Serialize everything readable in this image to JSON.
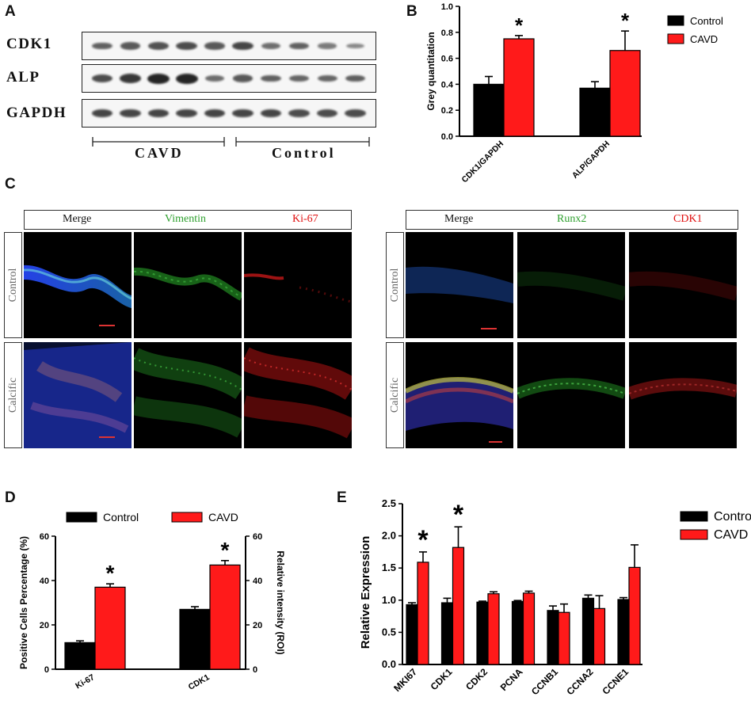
{
  "panel_labels": {
    "a": "A",
    "b": "B",
    "c": "C",
    "d": "D",
    "e": "E"
  },
  "blot": {
    "rows": [
      {
        "label": "CDK1",
        "bands": [
          0.55,
          0.6,
          0.65,
          0.7,
          0.6,
          0.75,
          0.45,
          0.55,
          0.35,
          0.25
        ]
      },
      {
        "label": "ALP",
        "bands": [
          0.7,
          0.85,
          1.0,
          1.0,
          0.45,
          0.6,
          0.55,
          0.5,
          0.5,
          0.55
        ]
      },
      {
        "label": "GAPDH",
        "bands": [
          0.75,
          0.75,
          0.75,
          0.75,
          0.75,
          0.75,
          0.75,
          0.7,
          0.7,
          0.7
        ]
      }
    ],
    "group_left": "CAVD",
    "group_right": "Control"
  },
  "colors": {
    "control": "#000000",
    "cavd": "#ff1a1a",
    "vimentin_text": "#2ea02e",
    "ki67_text": "#e01010",
    "runx2_text": "#2ea02e",
    "cdk1_text": "#e01010"
  },
  "chart_data": [
    {
      "type": "bar",
      "panel": "B",
      "categories": [
        "CDK1/GAPDH",
        "ALP/GAPDH"
      ],
      "series": [
        {
          "name": "Control",
          "values": [
            0.4,
            0.37
          ],
          "errors": [
            0.06,
            0.05
          ]
        },
        {
          "name": "CAVD",
          "values": [
            0.75,
            0.66
          ],
          "errors": [
            0.025,
            0.15
          ]
        }
      ],
      "significance": [
        "*",
        "*"
      ],
      "ylabel": "Grey quantitation",
      "ylim": [
        0,
        1.0
      ],
      "yticks": [
        "0.0",
        "0.2",
        "0.4",
        "0.6",
        "0.8",
        "1.0"
      ],
      "legend": "top-right"
    },
    {
      "type": "bar",
      "panel": "D",
      "categories": [
        "Ki-67",
        "CDK1"
      ],
      "series": [
        {
          "name": "Control",
          "values": [
            12,
            27
          ],
          "errors": [
            0.8,
            1.2
          ]
        },
        {
          "name": "CAVD",
          "values": [
            37,
            47
          ],
          "errors": [
            1.5,
            2.0
          ]
        }
      ],
      "significance": [
        "*",
        "*"
      ],
      "ylabel": "Positive Cells Percentage (%)",
      "ylabel_right": "Relative intensity (ROI)",
      "ylim": [
        0,
        60
      ],
      "yticks": [
        "0",
        "20",
        "40",
        "60"
      ],
      "legend": "top"
    },
    {
      "type": "bar",
      "panel": "E",
      "categories": [
        "MKI67",
        "CDK1",
        "CDK2",
        "PCNA",
        "CCNB1",
        "CCNA2",
        "CCNE1"
      ],
      "series": [
        {
          "name": "Control",
          "values": [
            0.93,
            0.96,
            0.97,
            0.98,
            0.84,
            1.03,
            1.01
          ],
          "errors": [
            0.03,
            0.07,
            0.015,
            0.015,
            0.07,
            0.05,
            0.03
          ]
        },
        {
          "name": "CAVD",
          "values": [
            1.59,
            1.82,
            1.1,
            1.11,
            0.81,
            0.87,
            1.51
          ],
          "errors": [
            0.16,
            0.32,
            0.03,
            0.03,
            0.13,
            0.2,
            0.35
          ]
        }
      ],
      "significance": [
        "*",
        "*",
        "",
        "",
        "",
        "",
        ""
      ],
      "ylabel": "Relative Expression",
      "ylim": [
        0,
        2.5
      ],
      "yticks": [
        "0.0",
        "0.5",
        "1.0",
        "1.5",
        "2.0",
        "2.5"
      ],
      "legend": "top-right"
    }
  ],
  "if_left": {
    "headers": [
      "Merge",
      "Vimentin",
      "Ki-67"
    ],
    "rows": [
      "Control",
      "Calcific"
    ]
  },
  "if_right": {
    "headers": [
      "Merge",
      "Runx2",
      "CDK1"
    ],
    "rows": [
      "Control",
      "Calcific"
    ]
  }
}
